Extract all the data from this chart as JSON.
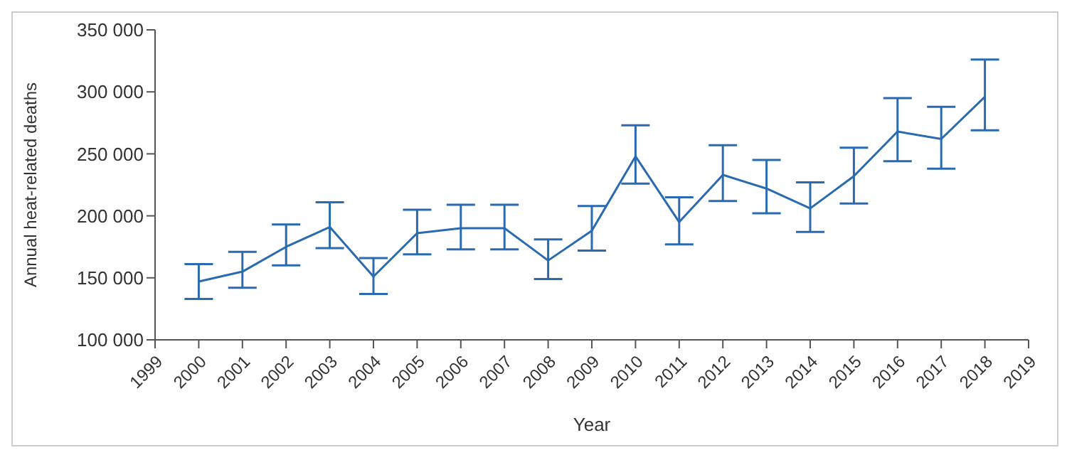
{
  "chart_data": {
    "type": "line",
    "xlabel": "Year",
    "ylabel": "Annual heat-related deaths",
    "x": [
      2000,
      2001,
      2002,
      2003,
      2004,
      2005,
      2006,
      2007,
      2008,
      2009,
      2010,
      2011,
      2012,
      2013,
      2014,
      2015,
      2016,
      2017,
      2018
    ],
    "series": [
      {
        "color": "#2a6ab0",
        "values": [
          147000,
          155000,
          175000,
          191000,
          151000,
          186000,
          190000,
          190000,
          164000,
          188000,
          248000,
          195000,
          233000,
          222000,
          206000,
          232000,
          268000,
          262000,
          296000
        ],
        "errors": [
          [
            133000,
            161000
          ],
          [
            142000,
            171000
          ],
          [
            160000,
            193000
          ],
          [
            174000,
            211000
          ],
          [
            137000,
            166000
          ],
          [
            169000,
            205000
          ],
          [
            173000,
            209000
          ],
          [
            173000,
            209000
          ],
          [
            149000,
            181000
          ],
          [
            172000,
            208000
          ],
          [
            226000,
            273000
          ],
          [
            177000,
            215000
          ],
          [
            212000,
            257000
          ],
          [
            202000,
            245000
          ],
          [
            187000,
            227000
          ],
          [
            210000,
            255000
          ],
          [
            244000,
            295000
          ],
          [
            238000,
            288000
          ],
          [
            269000,
            326000
          ]
        ]
      }
    ],
    "xlim": [
      1999,
      2019
    ],
    "xticks": [
      1999,
      2000,
      2001,
      2002,
      2003,
      2004,
      2005,
      2006,
      2007,
      2008,
      2009,
      2010,
      2011,
      2012,
      2013,
      2014,
      2015,
      2016,
      2017,
      2018,
      2019
    ],
    "ylim": [
      100000,
      350000
    ],
    "yticks": [
      {
        "value": 100000,
        "label": "100 000"
      },
      {
        "value": 150000,
        "label": "150 000"
      },
      {
        "value": 200000,
        "label": "200 000"
      },
      {
        "value": 250000,
        "label": "250 000"
      },
      {
        "value": 300000,
        "label": "300 000"
      },
      {
        "value": 350000,
        "label": "350 000"
      }
    ],
    "grid": false,
    "marker": "none",
    "line_style": "solid"
  }
}
